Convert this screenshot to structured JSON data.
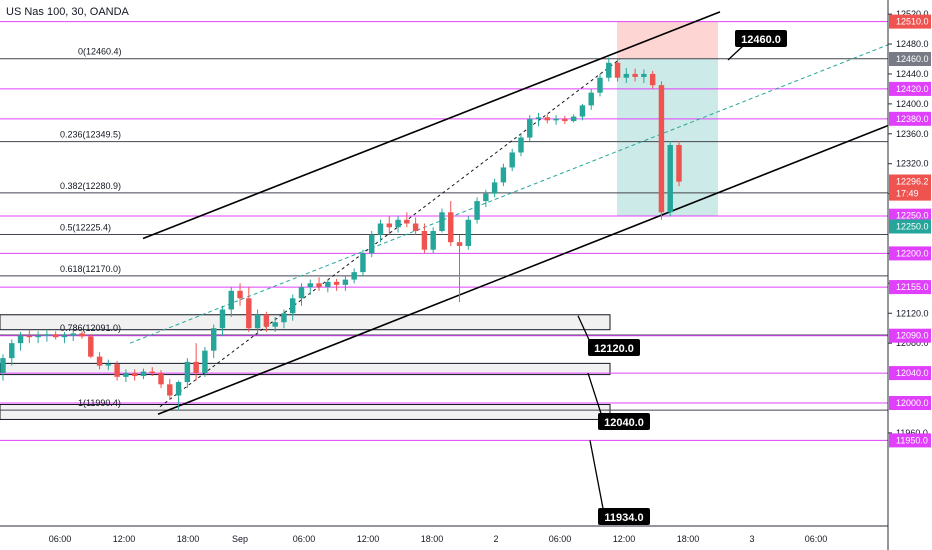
{
  "chart_data": {
    "type": "candlestick",
    "title": "US Nas 100, 30, OANDA",
    "ylim": [
      11940,
      12525
    ],
    "x_ticks": [
      "06:00",
      "12:00",
      "18:00",
      "Sep",
      "06:00",
      "12:00",
      "18:00",
      "2",
      "06:00",
      "12:00",
      "18:00",
      "3",
      "06:00"
    ],
    "y_ticks": [
      12520.0,
      12480.0,
      12440.0,
      12400.0,
      12360.0,
      12320.0,
      12280.0,
      12200.0,
      12160.0,
      12120.0,
      12080.0,
      11960.0
    ],
    "fib_levels": [
      {
        "label": "0(12460.4)",
        "price": 12460.4
      },
      {
        "label": "0.236(12349.5)",
        "price": 12349.5
      },
      {
        "label": "0.382(12280.9)",
        "price": 12280.9
      },
      {
        "label": "0.5(12225.4)",
        "price": 12225.4
      },
      {
        "label": "0.618(12170.0)",
        "price": 12170.0
      },
      {
        "label": "0.786(12091.0)",
        "price": 12091.0
      },
      {
        "label": "1(11990.4)",
        "price": 11990.4
      }
    ],
    "magenta_levels": [
      {
        "label": "12510.0",
        "price": 12510.0
      },
      {
        "label": "12420.0",
        "price": 12420.0
      },
      {
        "label": "12380.0",
        "price": 12380.0
      },
      {
        "label": "12250.0",
        "price": 12250.0
      },
      {
        "label": "12200.0",
        "price": 12200.0
      },
      {
        "label": "12155.0",
        "price": 12155.0
      },
      {
        "label": "12090.0",
        "price": 12090.0
      },
      {
        "label": "12040.0",
        "price": 12040.0
      },
      {
        "label": "12000.0",
        "price": 12000.0
      },
      {
        "label": "11950.0",
        "price": 11950.0
      }
    ],
    "price_labels": [
      {
        "label": "12510.0",
        "price": 12510.0,
        "color": "#ef5350"
      },
      {
        "label": "12460.0",
        "price": 12460.0,
        "color": "#787b86"
      },
      {
        "label": "12420.0",
        "price": 12420.0,
        "color": "#e040fb"
      },
      {
        "label": "12380.0",
        "price": 12380.0,
        "color": "#e040fb"
      },
      {
        "label": "12296.2",
        "price": 12296.2,
        "color": "#ef5350"
      },
      {
        "label": "17:49",
        "price": 12280.0,
        "color": "#ef5350"
      },
      {
        "label": "12250.0",
        "price": 12250.5,
        "color": "#e040fb"
      },
      {
        "label": "12250.0",
        "price": 12236.0,
        "color": "#26a69a"
      },
      {
        "label": "12200.0",
        "price": 12200.0,
        "color": "#e040fb"
      },
      {
        "label": "12155.0",
        "price": 12155.0,
        "color": "#e040fb"
      },
      {
        "label": "12090.0",
        "price": 12090.0,
        "color": "#e040fb"
      },
      {
        "label": "12040.0",
        "price": 12040.0,
        "color": "#e040fb"
      },
      {
        "label": "12000.0",
        "price": 12000.0,
        "color": "#e040fb"
      },
      {
        "label": "11950.0",
        "price": 11950.0,
        "color": "#e040fb"
      }
    ],
    "annotations": [
      "12460.0",
      "12120.0",
      "12040.0",
      "11934.0"
    ],
    "position": {
      "entry": 12460.0,
      "stop": 12510.0,
      "target": 12250.0
    },
    "candles": [
      [
        12040,
        12065,
        12030,
        12060
      ],
      [
        12060,
        12085,
        12050,
        12080
      ],
      [
        12080,
        12095,
        12070,
        12090
      ],
      [
        12090,
        12098,
        12080,
        12088
      ],
      [
        12088,
        12096,
        12080,
        12090
      ],
      [
        12090,
        12098,
        12082,
        12092
      ],
      [
        12092,
        12096,
        12085,
        12088
      ],
      [
        12088,
        12095,
        12080,
        12090
      ],
      [
        12090,
        12097,
        12083,
        12093
      ],
      [
        12093,
        12096,
        12086,
        12089
      ],
      [
        12089,
        12092,
        12060,
        12062
      ],
      [
        12062,
        12068,
        12045,
        12050
      ],
      [
        12050,
        12058,
        12044,
        12052
      ],
      [
        12052,
        12056,
        12030,
        12035
      ],
      [
        12035,
        12045,
        12028,
        12040
      ],
      [
        12040,
        12045,
        12030,
        12036
      ],
      [
        12036,
        12046,
        12032,
        12042
      ],
      [
        12042,
        12048,
        12036,
        12040
      ],
      [
        12040,
        12044,
        12020,
        12025
      ],
      [
        12025,
        12032,
        12005,
        12010
      ],
      [
        12010,
        12030,
        11990,
        12028
      ],
      [
        12028,
        12060,
        12020,
        12055
      ],
      [
        12055,
        12080,
        12030,
        12040
      ],
      [
        12040,
        12075,
        12035,
        12070
      ],
      [
        12070,
        12105,
        12060,
        12100
      ],
      [
        12100,
        12130,
        12090,
        12125
      ],
      [
        12125,
        12155,
        12115,
        12150
      ],
      [
        12150,
        12160,
        12130,
        12140
      ],
      [
        12140,
        12155,
        12095,
        12100
      ],
      [
        12100,
        12125,
        12090,
        12118
      ],
      [
        12118,
        12122,
        12095,
        12102
      ],
      [
        12102,
        12115,
        12095,
        12108
      ],
      [
        12108,
        12125,
        12100,
        12120
      ],
      [
        12120,
        12145,
        12110,
        12140
      ],
      [
        12140,
        12160,
        12130,
        12155
      ],
      [
        12155,
        12165,
        12145,
        12160
      ],
      [
        12160,
        12168,
        12150,
        12155
      ],
      [
        12155,
        12165,
        12148,
        12162
      ],
      [
        12162,
        12166,
        12150,
        12158
      ],
      [
        12158,
        12170,
        12150,
        12165
      ],
      [
        12165,
        12180,
        12160,
        12175
      ],
      [
        12175,
        12205,
        12170,
        12200
      ],
      [
        12200,
        12230,
        12195,
        12225
      ],
      [
        12225,
        12245,
        12215,
        12240
      ],
      [
        12240,
        12250,
        12225,
        12235
      ],
      [
        12235,
        12250,
        12228,
        12245
      ],
      [
        12245,
        12255,
        12235,
        12240
      ],
      [
        12240,
        12248,
        12225,
        12230
      ],
      [
        12230,
        12240,
        12200,
        12205
      ],
      [
        12205,
        12235,
        12200,
        12230
      ],
      [
        12230,
        12260,
        12228,
        12255
      ],
      [
        12255,
        12270,
        12210,
        12215
      ],
      [
        12215,
        12225,
        12135,
        12210
      ],
      [
        12210,
        12250,
        12205,
        12245
      ],
      [
        12245,
        12275,
        12240,
        12270
      ],
      [
        12270,
        12285,
        12262,
        12280
      ],
      [
        12280,
        12300,
        12275,
        12295
      ],
      [
        12295,
        12320,
        12290,
        12315
      ],
      [
        12315,
        12340,
        12310,
        12335
      ],
      [
        12335,
        12360,
        12330,
        12355
      ],
      [
        12355,
        12385,
        12350,
        12380
      ],
      [
        12380,
        12388,
        12370,
        12382
      ],
      [
        12382,
        12386,
        12374,
        12378
      ],
      [
        12378,
        12385,
        12372,
        12380
      ],
      [
        12380,
        12384,
        12373,
        12377
      ],
      [
        12377,
        12386,
        12375,
        12383
      ],
      [
        12383,
        12400,
        12378,
        12398
      ],
      [
        12398,
        12420,
        12392,
        12415
      ],
      [
        12415,
        12440,
        12410,
        12435
      ],
      [
        12435,
        12462,
        12430,
        12455
      ],
      [
        12455,
        12460,
        12430,
        12435
      ],
      [
        12435,
        12448,
        12428,
        12440
      ],
      [
        12440,
        12447,
        12430,
        12436
      ],
      [
        12436,
        12446,
        12428,
        12440
      ],
      [
        12440,
        12444,
        12420,
        12425
      ],
      [
        12425,
        12430,
        12245,
        12255
      ],
      [
        12255,
        12350,
        12250,
        12345
      ],
      [
        12345,
        12350,
        12290,
        12296
      ]
    ]
  }
}
